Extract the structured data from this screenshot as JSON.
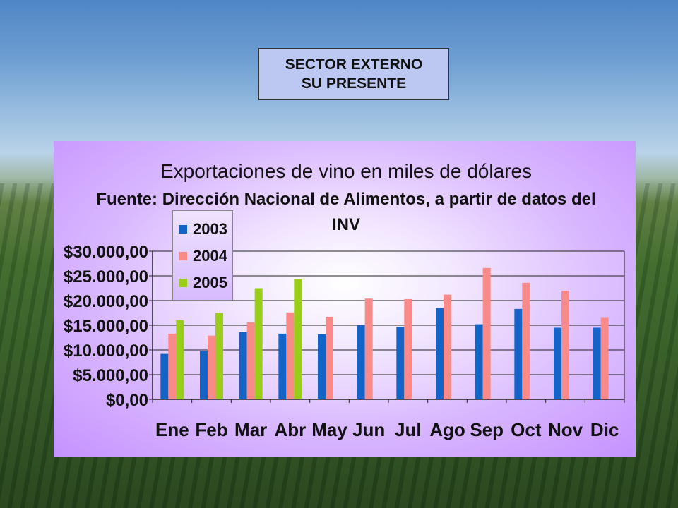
{
  "header": {
    "line1": "SECTOR EXTERNO",
    "line2": "SU PRESENTE"
  },
  "chart_data": {
    "type": "bar",
    "title": "Exportaciones de vino en miles de dólares",
    "subtitle": "Fuente: Dirección Nacional de Alimentos, a partir de datos del INV",
    "categories": [
      "Ene",
      "Feb",
      "Mar",
      "Abr",
      "May",
      "Jun",
      "Jul",
      "Ago",
      "Sep",
      "Oct",
      "Nov",
      "Dic"
    ],
    "series": [
      {
        "name": "2003",
        "color": "#1464c8",
        "values": [
          9200,
          9800,
          13600,
          13300,
          13200,
          15000,
          14700,
          18500,
          15200,
          18300,
          14500,
          14500
        ]
      },
      {
        "name": "2004",
        "color": "#f88a8a",
        "values": [
          13300,
          12900,
          15600,
          17600,
          16700,
          20400,
          20300,
          21200,
          26600,
          23600,
          22000,
          16500
        ]
      },
      {
        "name": "2005",
        "color": "#9acd19",
        "values": [
          16000,
          17500,
          22500,
          24300,
          null,
          null,
          null,
          null,
          null,
          null,
          null,
          null
        ]
      }
    ],
    "y_ticks": [
      "$0,00",
      "$5.000,00",
      "$10.000,00",
      "$15.000,00",
      "$20.000,00",
      "$25.000,00",
      "$30.000,00"
    ],
    "ylim": [
      0,
      30000
    ],
    "y_step": 5000,
    "grid": true,
    "legend_position": "top-left"
  }
}
